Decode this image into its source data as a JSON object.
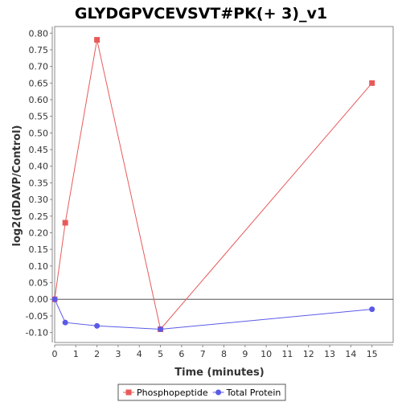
{
  "chart_data": {
    "type": "line",
    "title": "GLYDGPVCEVSVT#PK(+ 3)_v1",
    "xlabel": "Time (minutes)",
    "ylabel": "log2(dDAVP/Control)",
    "xlim": [
      0,
      16
    ],
    "ylim": [
      -0.13,
      0.82
    ],
    "x_ticks": [
      0,
      1,
      2,
      3,
      4,
      5,
      6,
      7,
      8,
      9,
      10,
      11,
      12,
      13,
      14,
      15
    ],
    "y_ticks": [
      -0.1,
      -0.05,
      0.0,
      0.05,
      0.1,
      0.15,
      0.2,
      0.25,
      0.3,
      0.35,
      0.4,
      0.45,
      0.5,
      0.55,
      0.6,
      0.65,
      0.7,
      0.75,
      0.8
    ],
    "y_tick_labels": [
      "-0.10",
      "-0.05",
      "0.00",
      "0.05",
      "0.10",
      "0.15",
      "0.20",
      "0.25",
      "0.30",
      "0.35",
      "0.40",
      "0.45",
      "0.50",
      "0.55",
      "0.60",
      "0.65",
      "0.70",
      "0.75",
      "0.80"
    ],
    "zero_line": true,
    "grid": false,
    "legend_position": "bottom",
    "series": [
      {
        "name": "Phosphopeptide",
        "color": "#e85a5a",
        "marker": "square",
        "x": [
          0,
          0.5,
          2,
          5,
          15
        ],
        "y": [
          0.0,
          0.23,
          0.78,
          -0.09,
          0.65
        ]
      },
      {
        "name": "Total Protein",
        "color": "#5a5ae8",
        "marker": "circle",
        "x": [
          0,
          0.5,
          2,
          5,
          15
        ],
        "y": [
          0.0,
          -0.07,
          -0.08,
          -0.09,
          -0.03
        ]
      }
    ]
  }
}
